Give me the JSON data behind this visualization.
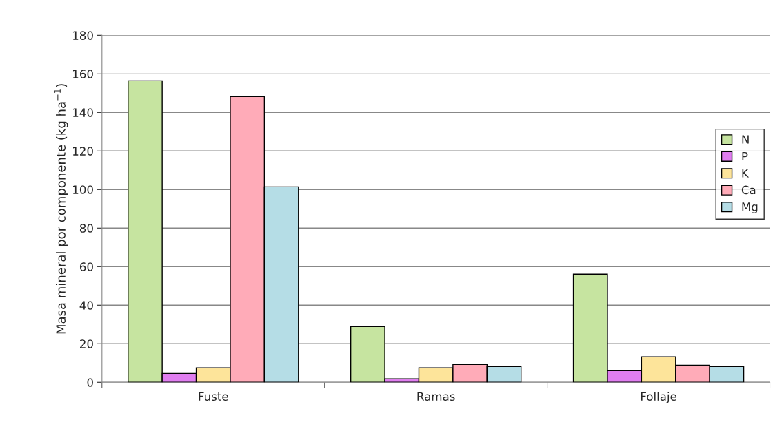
{
  "chart_data": {
    "type": "bar",
    "ylabel": "Masa mineral por componente (kg ha$^{−1}$)",
    "categories": [
      "Fuste",
      "Ramas",
      "Follaje"
    ],
    "series": [
      {
        "name": "N",
        "color": "#c6e4a0",
        "values": [
          156.4,
          28.9,
          56.1
        ]
      },
      {
        "name": "P",
        "color": "#e07ef0",
        "values": [
          4.6,
          1.8,
          6.1
        ]
      },
      {
        "name": "K",
        "color": "#fde49a",
        "values": [
          7.5,
          7.5,
          13.2
        ]
      },
      {
        "name": "Ca",
        "color": "#ffabb8",
        "values": [
          148.2,
          9.3,
          8.9
        ]
      },
      {
        "name": "Mg",
        "color": "#b5dde6",
        "values": [
          101.4,
          8.2,
          8.2
        ]
      }
    ],
    "ylim": [
      0,
      180
    ],
    "yticks": [
      0,
      20,
      40,
      60,
      80,
      100,
      120,
      140,
      160,
      180
    ],
    "grid": "y",
    "legend": "right"
  }
}
